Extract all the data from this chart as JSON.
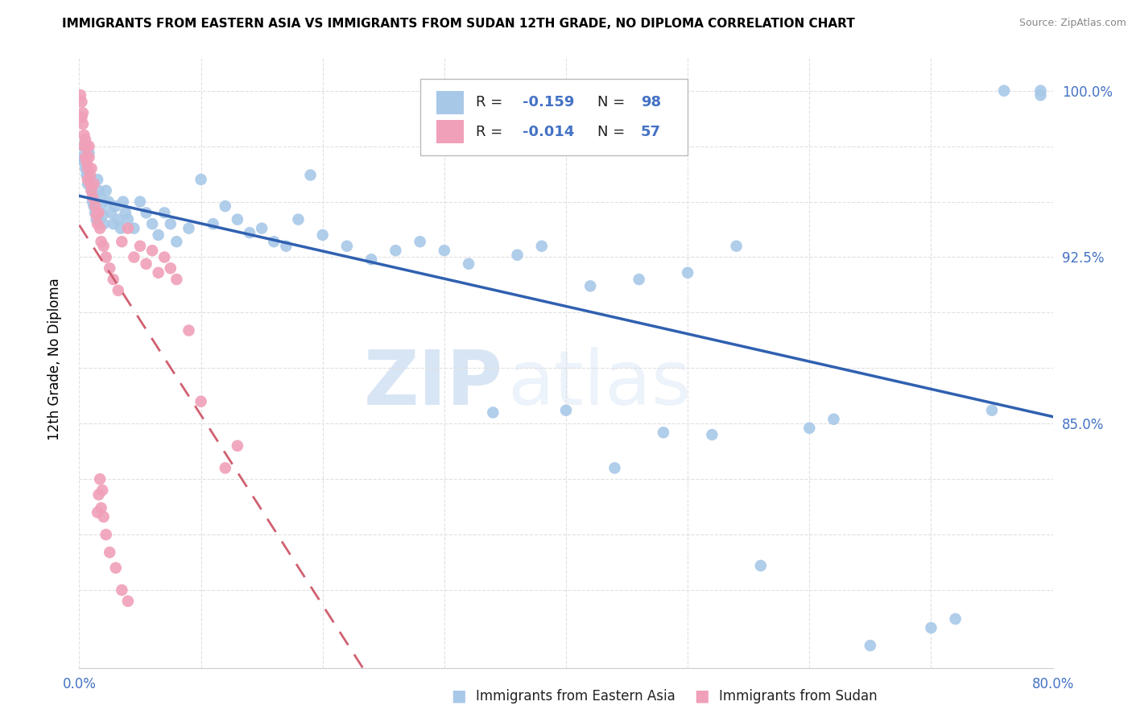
{
  "title": "IMMIGRANTS FROM EASTERN ASIA VS IMMIGRANTS FROM SUDAN 12TH GRADE, NO DIPLOMA CORRELATION CHART",
  "source": "Source: ZipAtlas.com",
  "ylabel": "12th Grade, No Diploma",
  "x_min": 0.0,
  "x_max": 0.8,
  "y_min": 0.74,
  "y_max": 1.015,
  "x_tick_positions": [
    0.0,
    0.1,
    0.2,
    0.3,
    0.4,
    0.5,
    0.6,
    0.7,
    0.8
  ],
  "x_tick_labels": [
    "0.0%",
    "",
    "",
    "",
    "",
    "",
    "",
    "",
    "80.0%"
  ],
  "y_tick_positions": [
    0.775,
    0.8,
    0.825,
    0.85,
    0.875,
    0.9,
    0.925,
    0.95,
    0.975,
    1.0
  ],
  "y_tick_labels": [
    "",
    "",
    "",
    "85.0%",
    "",
    "",
    "92.5%",
    "",
    "",
    "100.0%"
  ],
  "color_blue": "#a8c8e8",
  "color_pink": "#f0a0b8",
  "trendline_blue": "#3060b0",
  "trendline_pink": "#d06070",
  "watermark_zip": "ZIP",
  "watermark_atlas": "atlas",
  "blue_scatter_x": [
    0.002,
    0.003,
    0.004,
    0.005,
    0.006,
    0.007,
    0.008,
    0.009,
    0.01,
    0.011,
    0.012,
    0.013,
    0.014,
    0.015,
    0.016,
    0.017,
    0.018,
    0.019,
    0.02,
    0.022,
    0.024,
    0.026,
    0.028,
    0.03,
    0.032,
    0.034,
    0.036,
    0.038,
    0.04,
    0.045,
    0.05,
    0.055,
    0.06,
    0.065,
    0.07,
    0.075,
    0.08,
    0.09,
    0.1,
    0.11,
    0.12,
    0.13,
    0.14,
    0.15,
    0.16,
    0.17,
    0.18,
    0.19,
    0.2,
    0.22,
    0.24,
    0.26,
    0.28,
    0.3,
    0.32,
    0.34,
    0.36,
    0.38,
    0.4,
    0.42,
    0.44,
    0.46,
    0.48,
    0.5,
    0.52,
    0.54,
    0.56,
    0.6,
    0.62,
    0.65,
    0.7,
    0.72,
    0.75,
    0.76,
    0.79,
    0.79
  ],
  "blue_scatter_y": [
    0.97,
    0.975,
    0.968,
    0.965,
    0.962,
    0.958,
    0.972,
    0.96,
    0.955,
    0.95,
    0.948,
    0.945,
    0.942,
    0.96,
    0.955,
    0.952,
    0.948,
    0.944,
    0.94,
    0.955,
    0.95,
    0.945,
    0.94,
    0.948,
    0.942,
    0.938,
    0.95,
    0.945,
    0.942,
    0.938,
    0.95,
    0.945,
    0.94,
    0.935,
    0.945,
    0.94,
    0.932,
    0.938,
    0.96,
    0.94,
    0.948,
    0.942,
    0.936,
    0.938,
    0.932,
    0.93,
    0.942,
    0.962,
    0.935,
    0.93,
    0.924,
    0.928,
    0.932,
    0.928,
    0.922,
    0.855,
    0.926,
    0.93,
    0.856,
    0.912,
    0.83,
    0.915,
    0.846,
    0.918,
    0.845,
    0.93,
    0.786,
    0.848,
    0.852,
    0.75,
    0.758,
    0.762,
    0.856,
    1.0,
    0.998,
    1.0
  ],
  "pink_scatter_x": [
    0.001,
    0.002,
    0.002,
    0.003,
    0.003,
    0.004,
    0.004,
    0.005,
    0.005,
    0.006,
    0.006,
    0.007,
    0.007,
    0.008,
    0.008,
    0.009,
    0.009,
    0.01,
    0.01,
    0.011,
    0.012,
    0.013,
    0.014,
    0.015,
    0.016,
    0.017,
    0.018,
    0.02,
    0.022,
    0.025,
    0.028,
    0.032,
    0.035,
    0.04,
    0.045,
    0.05,
    0.055,
    0.06,
    0.065,
    0.07,
    0.075,
    0.08,
    0.09,
    0.1,
    0.12,
    0.13,
    0.015,
    0.016,
    0.017,
    0.018,
    0.019,
    0.02,
    0.022,
    0.025,
    0.03,
    0.035,
    0.04
  ],
  "pink_scatter_y": [
    0.998,
    0.995,
    0.988,
    0.985,
    0.99,
    0.975,
    0.98,
    0.97,
    0.978,
    0.968,
    0.975,
    0.965,
    0.96,
    0.975,
    0.97,
    0.962,
    0.958,
    0.965,
    0.955,
    0.952,
    0.958,
    0.948,
    0.944,
    0.94,
    0.945,
    0.938,
    0.932,
    0.93,
    0.925,
    0.92,
    0.915,
    0.91,
    0.932,
    0.938,
    0.925,
    0.93,
    0.922,
    0.928,
    0.918,
    0.925,
    0.92,
    0.915,
    0.892,
    0.86,
    0.83,
    0.84,
    0.81,
    0.818,
    0.825,
    0.812,
    0.82,
    0.808,
    0.8,
    0.792,
    0.785,
    0.775,
    0.77
  ]
}
